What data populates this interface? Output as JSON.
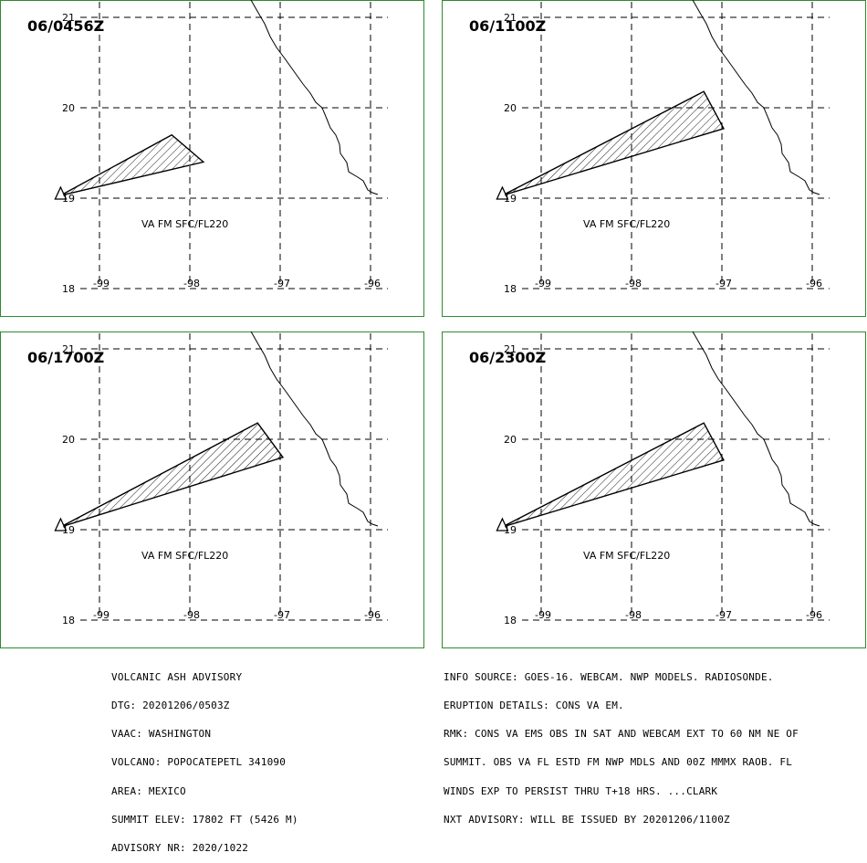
{
  "colors": {
    "panel_border": "#2f8a2f",
    "ash_fill": "hatched",
    "line": "#000000"
  },
  "panels": [
    {
      "time_label": "06/0456Z",
      "ash_label": "VA FM SFC/FL220",
      "ash_polygon_lonlat": [
        [
          -99.43,
          19.03
        ],
        [
          -98.2,
          19.7
        ],
        [
          -97.85,
          19.4
        ]
      ]
    },
    {
      "time_label": "06/1100Z",
      "ash_label": "VA FM SFC/FL220",
      "ash_polygon_lonlat": [
        [
          -99.43,
          19.03
        ],
        [
          -97.2,
          20.18
        ],
        [
          -96.98,
          19.77
        ]
      ]
    },
    {
      "time_label": "06/1700Z",
      "ash_label": "VA FM SFC/FL220",
      "ash_polygon_lonlat": [
        [
          -99.43,
          19.03
        ],
        [
          -97.25,
          20.18
        ],
        [
          -96.97,
          19.8
        ]
      ]
    },
    {
      "time_label": "06/2300Z",
      "ash_label": "VA FM SFC/FL220",
      "ash_polygon_lonlat": [
        [
          -99.43,
          19.03
        ],
        [
          -97.2,
          20.18
        ],
        [
          -96.98,
          19.77
        ]
      ]
    }
  ],
  "axes": {
    "lon_ticks": [
      "-99",
      "-98",
      "-97",
      "-96"
    ],
    "lat_ticks": [
      "21",
      "20",
      "19",
      "18"
    ]
  },
  "volcano_lonlat": [
    -99.43,
    19.03
  ],
  "advisory_left": [
    "VOLCANIC ASH ADVISORY",
    "DTG: 20201206/0503Z",
    "VAAC: WASHINGTON",
    "VOLCANO: POPOCATEPETL 341090",
    "AREA: MEXICO",
    "SUMMIT ELEV: 17802 FT (5426 M)",
    "ADVISORY NR: 2020/1022"
  ],
  "advisory_right": [
    "INFO SOURCE: GOES-16. WEBCAM. NWP MODELS. RADIOSONDE.",
    "ERUPTION DETAILS: CONS VA EM.",
    "RMK: CONS VA EMS OBS IN SAT AND WEBCAM EXT TO 60 NM NE OF",
    "SUMMIT. OBS VA FL ESTD FM NWP MDLS AND 00Z MMMX RAOB. FL",
    "WINDS EXP TO PERSIST THRU T+18 HRS. ...CLARK",
    "NXT ADVISORY: WILL BE ISSUED BY 20201206/1100Z"
  ]
}
